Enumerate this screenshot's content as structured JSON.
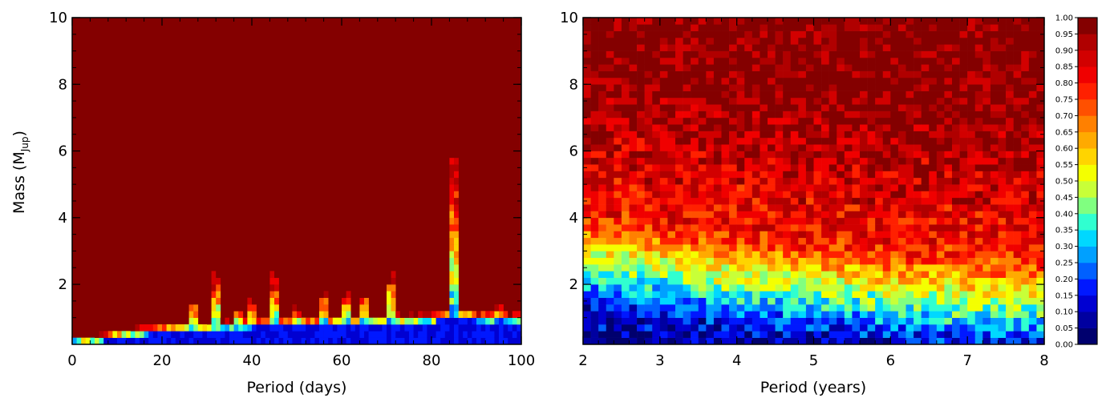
{
  "chart_data": [
    {
      "type": "heatmap",
      "xlabel": "Period (days)",
      "ylabel": "Mass (M",
      "ylabel_sub": "Jup",
      "ylabel_close": ")",
      "xlim": [
        0,
        100
      ],
      "ylim": [
        0.2,
        10
      ],
      "xticks": [
        "0",
        "20",
        "40",
        "60",
        "80",
        "100"
      ],
      "yticks": [
        "2",
        "4",
        "6",
        "8",
        "10"
      ],
      "xtick_values": [
        0,
        20,
        40,
        60,
        80,
        100
      ],
      "ytick_values": [
        2,
        4,
        6,
        8,
        10
      ],
      "x_bins": 100,
      "y_bins": 49,
      "background_value": 1.0,
      "threshold_profile": [
        [
          0,
          0.2
        ],
        [
          5,
          0.25
        ],
        [
          10,
          0.4
        ],
        [
          20,
          0.55
        ],
        [
          30,
          0.65
        ],
        [
          40,
          0.7
        ],
        [
          50,
          0.75
        ],
        [
          60,
          0.8
        ],
        [
          70,
          0.85
        ],
        [
          80,
          0.85
        ],
        [
          85,
          1.0
        ],
        [
          90,
          0.9
        ],
        [
          100,
          0.9
        ]
      ],
      "spikes": [
        {
          "x": 27,
          "top": 1.7
        },
        {
          "x": 32,
          "top": 2.6
        },
        {
          "x": 37,
          "top": 1.5
        },
        {
          "x": 40,
          "top": 1.7
        },
        {
          "x": 45,
          "top": 2.5
        },
        {
          "x": 50,
          "top": 1.5
        },
        {
          "x": 56,
          "top": 2.0
        },
        {
          "x": 61,
          "top": 2.0
        },
        {
          "x": 65,
          "top": 1.9
        },
        {
          "x": 71,
          "top": 2.6
        },
        {
          "x": 85,
          "top": 6.2
        },
        {
          "x": 89,
          "top": 1.4
        },
        {
          "x": 95,
          "top": 1.5
        }
      ]
    },
    {
      "type": "heatmap",
      "xlabel": "Period (years)",
      "xlim": [
        2,
        8
      ],
      "ylim": [
        0.2,
        10
      ],
      "xticks": [
        "2",
        "3",
        "4",
        "5",
        "6",
        "7",
        "8"
      ],
      "yticks": [
        "2",
        "4",
        "6",
        "8",
        "10"
      ],
      "xtick_values": [
        2,
        3,
        4,
        5,
        6,
        7,
        8
      ],
      "ytick_values": [
        2,
        4,
        6,
        8,
        10
      ],
      "x_bins": 60,
      "y_bins": 49,
      "transition_profile": [
        [
          2,
          2.6
        ],
        [
          3,
          2.3
        ],
        [
          4,
          2.0
        ],
        [
          5,
          1.8
        ],
        [
          6,
          1.6
        ],
        [
          7,
          1.45
        ],
        [
          8,
          1.35
        ]
      ]
    }
  ],
  "colorbar": {
    "min": 0.0,
    "max": 1.0,
    "step": 0.05,
    "labels": [
      "0.00",
      "0.05",
      "0.10",
      "0.15",
      "0.20",
      "0.25",
      "0.30",
      "0.35",
      "0.40",
      "0.45",
      "0.50",
      "0.55",
      "0.60",
      "0.65",
      "0.70",
      "0.75",
      "0.80",
      "0.85",
      "0.90",
      "0.95",
      "1.00"
    ],
    "colors": [
      "#00006e",
      "#0000a0",
      "#0000d2",
      "#0018ff",
      "#0060ff",
      "#00a0ff",
      "#00d8ff",
      "#30ffd0",
      "#80ff80",
      "#c8ff38",
      "#f4ff00",
      "#ffd400",
      "#ffaa00",
      "#ff8000",
      "#ff5000",
      "#ff2000",
      "#f00000",
      "#d20000",
      "#b00000",
      "#840000"
    ]
  }
}
